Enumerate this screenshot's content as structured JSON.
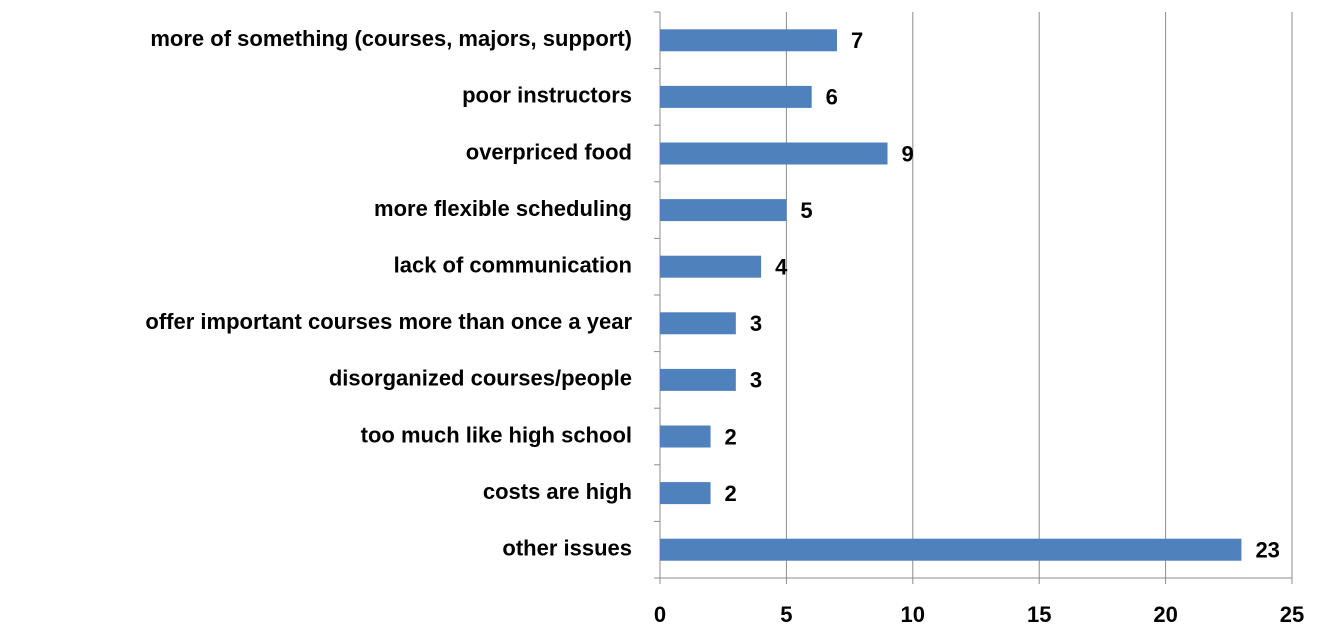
{
  "chart_data": {
    "type": "bar",
    "categories": [
      "more of something (courses, majors, support)",
      "poor instructors",
      "overpriced food",
      "more flexible scheduling",
      "lack of communication",
      "offer important courses more than once a year",
      "disorganized courses/people",
      "too much like high school",
      "costs are high",
      "other issues"
    ],
    "values": [
      7,
      6,
      9,
      5,
      4,
      3,
      3,
      2,
      2,
      23
    ],
    "color": "#4f81bd",
    "xlim": [
      0,
      25
    ],
    "xticks": [
      0,
      5,
      10,
      15,
      20,
      25
    ],
    "grid": true
  }
}
